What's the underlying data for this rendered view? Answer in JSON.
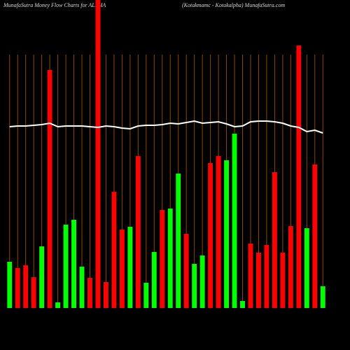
{
  "chart_data": {
    "type": "bar",
    "title": "MunafaSutra  Money Flow  Charts for ALPHA",
    "subtitle": "(Kotakmamc -  Kotakalpha) MunafaSutra.com",
    "categories": [
      null,
      null,
      null,
      null,
      null,
      null,
      null,
      null,
      null,
      null,
      null,
      null,
      null,
      null,
      null,
      null,
      null,
      null,
      null,
      null,
      null,
      null,
      null,
      null,
      null,
      null,
      null,
      null,
      null,
      null,
      null,
      null,
      null,
      null,
      null,
      null,
      null,
      null,
      null,
      null
    ],
    "ylim": [
      0,
      440
    ],
    "grid": true,
    "grid_color": "#8b4a00",
    "bars": {
      "values": [
        66,
        57,
        61,
        44,
        88,
        340,
        8,
        119,
        126,
        59,
        43,
        460,
        37,
        166,
        112,
        116,
        217,
        36,
        80,
        140,
        142,
        192,
        106,
        63,
        75,
        207,
        217,
        211,
        249,
        10,
        92,
        79,
        90,
        194,
        79,
        117,
        375,
        114,
        205,
        31
      ],
      "colors": [
        "#00ff00",
        "#ff0000",
        "#ff0000",
        "#ff0000",
        "#00ff00",
        "#ff0000",
        "#00ff00",
        "#00ff00",
        "#00ff00",
        "#00ff00",
        "#ff0000",
        "#ff0000",
        "#ff0000",
        "#ff0000",
        "#ff0000",
        "#00ff00",
        "#ff0000",
        "#00ff00",
        "#00ff00",
        "#ff0000",
        "#00ff00",
        "#00ff00",
        "#ff0000",
        "#00ff00",
        "#00ff00",
        "#ff0000",
        "#ff0000",
        "#00ff00",
        "#00ff00",
        "#00ff00",
        "#ff0000",
        "#ff0000",
        "#ff0000",
        "#ff0000",
        "#ff0000",
        "#ff0000",
        "#ff0000",
        "#00ff00",
        "#ff0000",
        "#00ff00"
      ]
    },
    "line": {
      "color": "#ffffff",
      "values": [
        259,
        260,
        260,
        261,
        262,
        264,
        259,
        260,
        260,
        260,
        259,
        258,
        260,
        259,
        257,
        256,
        260,
        261,
        261,
        262,
        264,
        263,
        265,
        267,
        264,
        265,
        266,
        263,
        259,
        260,
        266,
        267,
        267,
        266,
        264,
        260,
        258,
        252,
        254,
        250
      ]
    }
  }
}
